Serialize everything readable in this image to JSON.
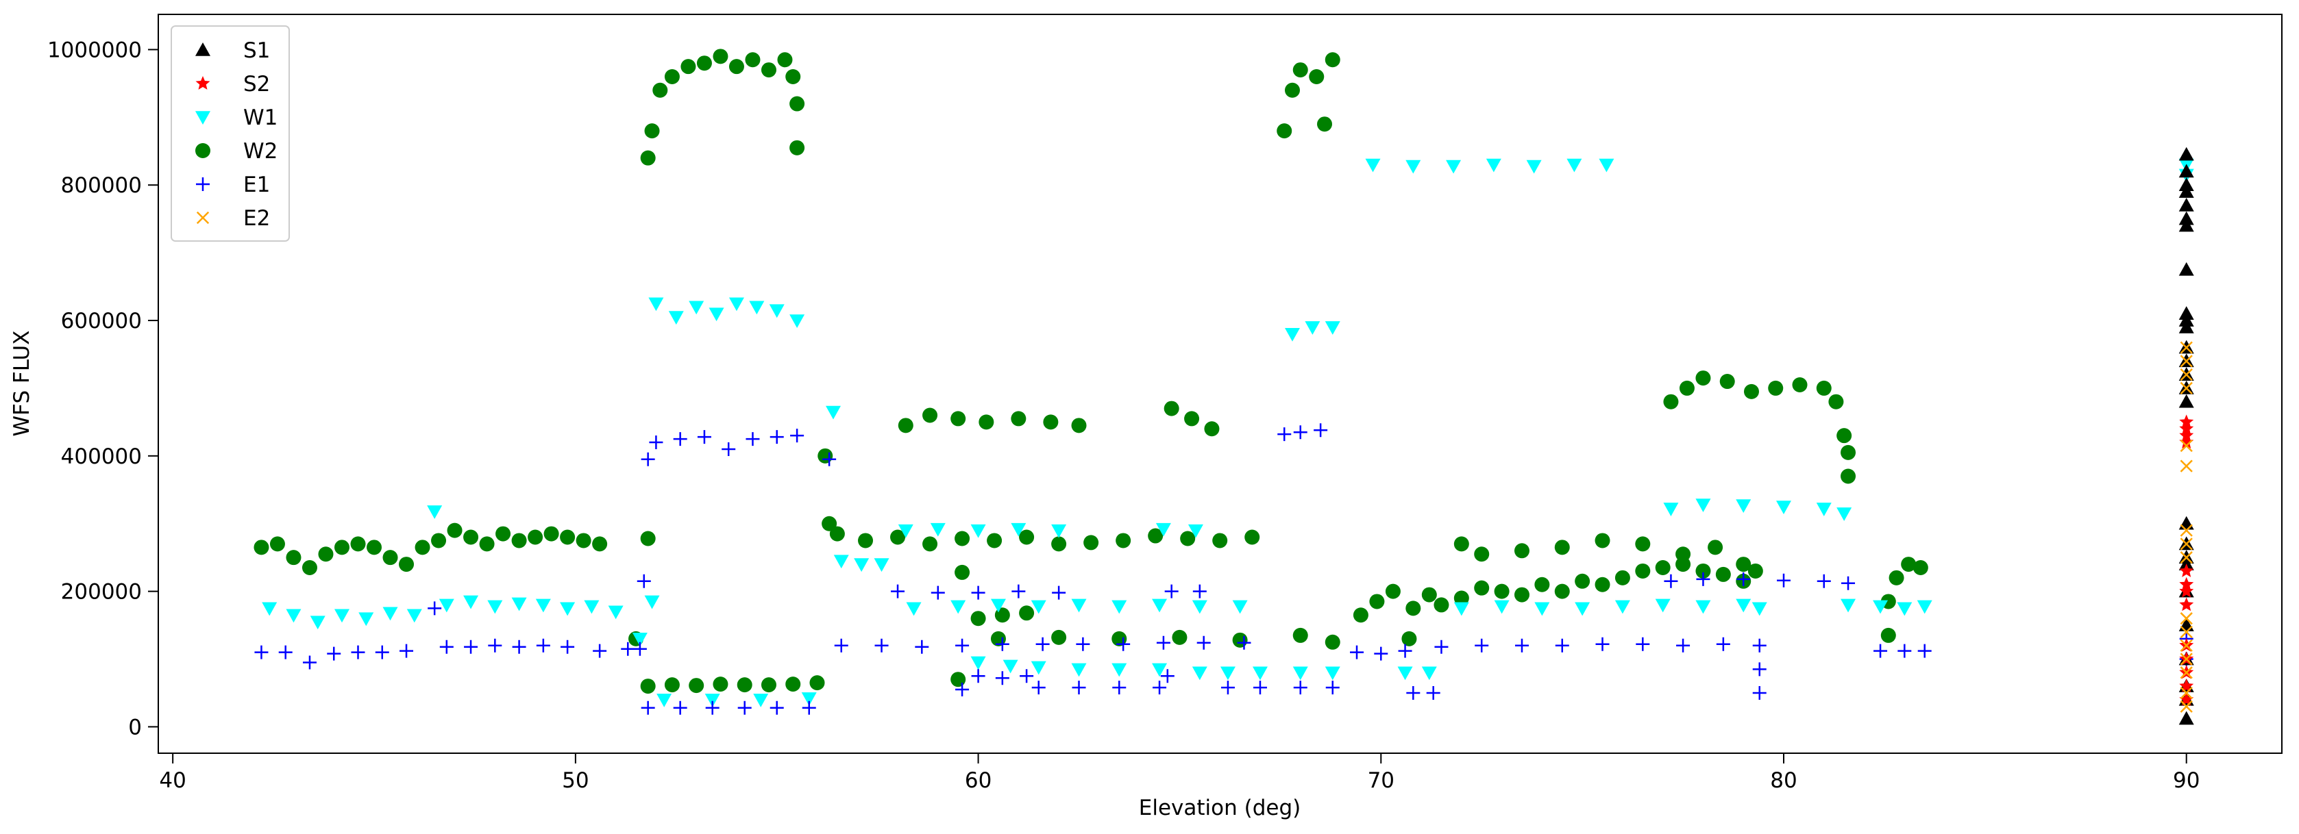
{
  "chart_data": {
    "type": "scatter",
    "xlabel": "Elevation (deg)",
    "ylabel": "WFS FLUX",
    "xlim": [
      39.64,
      92.37
    ],
    "ylim": [
      -39000,
      1052000
    ],
    "xticks": [
      40,
      50,
      60,
      70,
      80,
      90
    ],
    "yticks": [
      0,
      200000,
      400000,
      600000,
      800000,
      1000000
    ],
    "legend": "upper left",
    "series": [
      {
        "name": "S1",
        "color": "#000000",
        "marker": "^",
        "x": [
          90,
          90,
          90,
          90,
          90,
          90,
          90,
          90,
          90,
          90,
          90,
          90,
          90,
          90,
          90,
          90,
          90,
          90,
          90,
          90,
          90,
          90,
          90,
          90,
          90,
          90
        ],
        "values": [
          845000,
          820000,
          800000,
          790000,
          770000,
          750000,
          740000,
          675000,
          610000,
          600000,
          590000,
          560000,
          540000,
          520000,
          500000,
          480000,
          300000,
          270000,
          250000,
          240000,
          200000,
          150000,
          100000,
          60000,
          40000,
          12000
        ]
      },
      {
        "name": "S2",
        "color": "#ff0000",
        "marker": "*",
        "x": [
          90,
          90,
          90,
          90,
          90,
          90,
          90,
          90,
          90,
          90,
          90,
          90,
          90
        ],
        "values": [
          450000,
          440000,
          430000,
          420000,
          230000,
          210000,
          200000,
          180000,
          120000,
          100000,
          80000,
          60000,
          40000
        ]
      },
      {
        "name": "W1",
        "color": "#00ffff",
        "marker": "v",
        "x": [
          42.4,
          43,
          43.6,
          44.2,
          44.8,
          45.4,
          46,
          46.5,
          46.8,
          47.4,
          48,
          48.6,
          49.2,
          49.8,
          50.4,
          51,
          51.6,
          51.9,
          52,
          52.5,
          53,
          53.5,
          54,
          54.5,
          55,
          55.5,
          52.2,
          53.4,
          54.6,
          55.8,
          56.4,
          56.6,
          57.1,
          57.6,
          58.2,
          59,
          60,
          61,
          62,
          64.6,
          65.4,
          58.4,
          59.5,
          60.5,
          61.5,
          62.5,
          63.5,
          64.5,
          65.5,
          66.5,
          60,
          60.8,
          61.5,
          62.5,
          63.5,
          64.5,
          65.5,
          66.2,
          67,
          68,
          68.8,
          67.8,
          68.3,
          68.8,
          69.8,
          70.8,
          71.8,
          72.8,
          73.8,
          74.8,
          75.6,
          70.6,
          71.2,
          72,
          73,
          74,
          75,
          76,
          77,
          78,
          79,
          79.4,
          77.2,
          78,
          79,
          80,
          81,
          81.5,
          81.6,
          82.4,
          83,
          83.5,
          90,
          90
        ],
        "values": [
          175000,
          165000,
          155000,
          165000,
          160000,
          168000,
          165000,
          318000,
          180000,
          185000,
          178000,
          182000,
          180000,
          175000,
          178000,
          170000,
          130000,
          185000,
          625000,
          605000,
          620000,
          610000,
          625000,
          620000,
          615000,
          600000,
          40000,
          40000,
          40000,
          42000,
          465000,
          245000,
          240000,
          240000,
          290000,
          292000,
          290000,
          292000,
          290000,
          292000,
          290000,
          175000,
          178000,
          180000,
          178000,
          180000,
          178000,
          180000,
          178000,
          178000,
          95000,
          90000,
          88000,
          85000,
          85000,
          85000,
          80000,
          80000,
          80000,
          80000,
          80000,
          580000,
          590000,
          590000,
          830000,
          828000,
          828000,
          830000,
          828000,
          830000,
          830000,
          80000,
          80000,
          175000,
          178000,
          175000,
          175000,
          178000,
          180000,
          178000,
          180000,
          175000,
          322000,
          328000,
          327000,
          325000,
          322000,
          315000,
          180000,
          178000,
          175000,
          178000,
          830000,
          815000
        ]
      },
      {
        "name": "W2",
        "color": "#008000",
        "marker": "o",
        "x": [
          42.2,
          42.6,
          43,
          43.4,
          43.8,
          44.2,
          44.6,
          45,
          45.4,
          45.8,
          46.2,
          46.6,
          47,
          47.4,
          47.8,
          48.2,
          48.6,
          49,
          49.4,
          49.8,
          50.2,
          50.6,
          51.5,
          51.8,
          51.8,
          52.4,
          53,
          53.6,
          54.2,
          54.8,
          55.4,
          56,
          51.8,
          51.9,
          52.1,
          52.4,
          52.8,
          53.2,
          53.6,
          54,
          54.4,
          54.8,
          55.2,
          55.4,
          55.5,
          55.5,
          56.2,
          56.3,
          56.5,
          57.2,
          58,
          58.8,
          59.6,
          60.4,
          61.2,
          62,
          62.8,
          63.6,
          64.4,
          65.2,
          66,
          66.8,
          58.2,
          58.8,
          59.5,
          60.2,
          61,
          61.8,
          62.5,
          64.8,
          65.3,
          65.8,
          59.5,
          59.6,
          60,
          60.6,
          61.2,
          60.5,
          62,
          63.5,
          65,
          66.5,
          68,
          68.8,
          67.6,
          67.8,
          68,
          68.4,
          68.6,
          68.8,
          69.5,
          69.9,
          70.3,
          70.7,
          70.8,
          71.2,
          71.5,
          72,
          72.5,
          73,
          73.5,
          74,
          74.5,
          75,
          75.5,
          76,
          76.5,
          77,
          77.5,
          78,
          78.5,
          79,
          79.3,
          72,
          72.5,
          73.5,
          74.5,
          75.5,
          76.5,
          77.5,
          78.3,
          79,
          77.2,
          77.6,
          78,
          78.6,
          79.2,
          79.8,
          80.4,
          81,
          81.3,
          81.5,
          81.6,
          81.6,
          82.6,
          82.6,
          82.8,
          83.1,
          83.4
        ],
        "values": [
          265000,
          270000,
          250000,
          235000,
          255000,
          265000,
          270000,
          265000,
          250000,
          240000,
          265000,
          275000,
          290000,
          280000,
          270000,
          285000,
          275000,
          280000,
          285000,
          280000,
          275000,
          270000,
          130000,
          278000,
          60000,
          62000,
          61000,
          63000,
          62000,
          62000,
          63000,
          65000,
          840000,
          880000,
          940000,
          960000,
          975000,
          980000,
          990000,
          975000,
          985000,
          970000,
          985000,
          960000,
          920000,
          855000,
          400000,
          300000,
          285000,
          275000,
          280000,
          270000,
          278000,
          275000,
          280000,
          270000,
          272000,
          275000,
          282000,
          278000,
          275000,
          280000,
          445000,
          460000,
          455000,
          450000,
          455000,
          450000,
          445000,
          470000,
          455000,
          440000,
          70000,
          228000,
          160000,
          165000,
          168000,
          130000,
          132000,
          130000,
          132000,
          128000,
          135000,
          125000,
          880000,
          940000,
          970000,
          960000,
          890000,
          985000,
          165000,
          185000,
          200000,
          130000,
          175000,
          195000,
          180000,
          190000,
          205000,
          200000,
          195000,
          210000,
          200000,
          215000,
          210000,
          220000,
          230000,
          235000,
          240000,
          230000,
          225000,
          240000,
          230000,
          270000,
          255000,
          260000,
          265000,
          275000,
          270000,
          255000,
          265000,
          215000,
          480000,
          500000,
          515000,
          510000,
          495000,
          500000,
          505000,
          500000,
          480000,
          430000,
          405000,
          370000,
          135000,
          185000,
          220000,
          240000,
          235000
        ]
      },
      {
        "name": "E1",
        "color": "#0000ff",
        "marker": "+",
        "x": [
          42.2,
          42.8,
          43.4,
          44,
          44.6,
          45.2,
          45.8,
          46.5,
          46.8,
          47.4,
          48,
          48.6,
          49.2,
          49.8,
          50.6,
          51.3,
          51.6,
          51.7,
          51.8,
          52.6,
          53.4,
          54.2,
          55,
          55.8,
          51.8,
          52,
          52.6,
          53.2,
          53.8,
          54.4,
          55,
          55.5,
          56.3,
          56.6,
          57.6,
          58.6,
          59.6,
          60.6,
          61.6,
          62.6,
          63.6,
          64.6,
          65.6,
          66.6,
          58,
          59,
          60,
          61,
          62,
          64.8,
          65.5,
          59.6,
          60,
          60.6,
          61.2,
          61.5,
          62.5,
          63.5,
          64.5,
          64.7,
          66.2,
          67,
          68,
          68.8,
          67.6,
          68,
          68.5,
          69.4,
          70,
          70.6,
          70.8,
          71.3,
          71.5,
          72.5,
          73.5,
          74.5,
          75.5,
          76.5,
          77.5,
          78.5,
          79.4,
          79.4,
          79.4,
          77.2,
          78,
          79,
          80,
          81,
          81.6,
          82.4,
          83,
          83.5,
          90,
          90
        ],
        "values": [
          110000,
          110000,
          95000,
          108000,
          110000,
          110000,
          112000,
          175000,
          118000,
          118000,
          120000,
          118000,
          120000,
          118000,
          112000,
          115000,
          115000,
          215000,
          28000,
          28000,
          28000,
          28000,
          28000,
          28000,
          395000,
          420000,
          425000,
          428000,
          410000,
          425000,
          428000,
          430000,
          395000,
          120000,
          120000,
          118000,
          120000,
          122000,
          122000,
          122000,
          122000,
          124000,
          124000,
          124000,
          200000,
          198000,
          198000,
          200000,
          198000,
          200000,
          200000,
          55000,
          75000,
          72000,
          75000,
          58000,
          58000,
          58000,
          58000,
          75000,
          58000,
          58000,
          58000,
          58000,
          432000,
          435000,
          438000,
          110000,
          108000,
          112000,
          50000,
          50000,
          118000,
          120000,
          120000,
          120000,
          122000,
          122000,
          120000,
          122000,
          120000,
          85000,
          50000,
          215000,
          218000,
          218000,
          216000,
          215000,
          212000,
          112000,
          112000,
          112000,
          130000,
          100000
        ]
      },
      {
        "name": "E2",
        "color": "#ffa500",
        "marker": "x",
        "x": [
          90,
          90,
          90,
          90,
          90,
          90,
          90,
          90,
          90,
          90,
          90,
          90,
          90,
          90,
          90,
          90
        ],
        "values": [
          560000,
          540000,
          520000,
          500000,
          415000,
          385000,
          290000,
          270000,
          250000,
          160000,
          140000,
          120000,
          100000,
          80000,
          50000,
          30000
        ]
      }
    ]
  }
}
